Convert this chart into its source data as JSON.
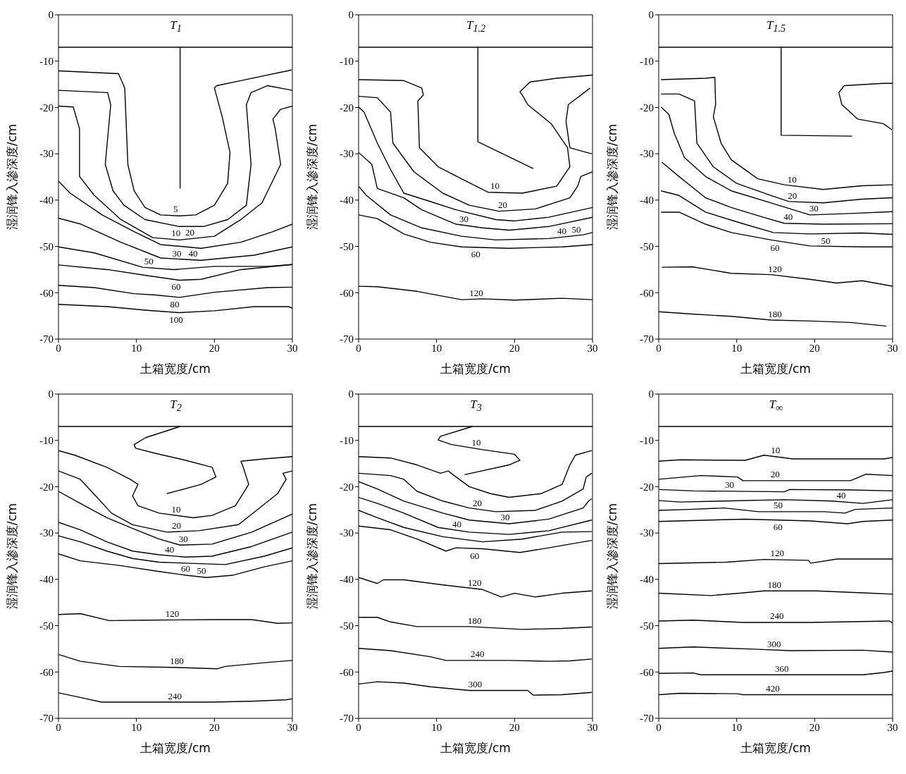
{
  "chart_data": [
    {
      "type": "line",
      "title": "T$_{1}$",
      "xlabel": "土箱宽度/cm",
      "ylabel": "湿润锋入渗深度/cm",
      "xlim": [
        0,
        30
      ],
      "xticks": [
        0,
        10,
        20,
        30
      ],
      "ylim": [
        -70,
        0
      ],
      "yticks": [
        -70,
        -60,
        -50,
        -40,
        -30,
        -20,
        -10,
        0
      ],
      "grid": false,
      "legend": false,
      "marker": "none",
      "line_style": "solid",
      "ref_lines": [
        {
          "axis": "y",
          "value": -7,
          "color": "#000000"
        }
      ],
      "series": [
        {
          "color": "#000000",
          "x": [
            15.6,
            15.6
          ],
          "values": [
            -7,
            -37.5
          ]
        },
        {
          "name": "5",
          "color": "#000000",
          "x": [
            0,
            7.7,
            8.5,
            8.9,
            9.7,
            11.1,
            13.1,
            15.5,
            17.6,
            20,
            21.7,
            22,
            21,
            20,
            20.3,
            23.4,
            29.9
          ],
          "values": [
            -12.1,
            -12.7,
            -15.8,
            -32.3,
            -38,
            -41.6,
            -43.2,
            -43.4,
            -43.2,
            -41.1,
            -36.4,
            -29.7,
            -22,
            -15.8,
            -15.3,
            -14.2,
            -11.9
          ]
        },
        {
          "name": "10",
          "color": "#000000",
          "x": [
            0,
            6.3,
            6.7,
            6,
            7,
            8.4,
            11.1,
            15.5,
            18.6,
            21.7,
            24.1,
            24.7,
            24.1,
            24.7,
            26.8,
            30
          ],
          "values": [
            -16.3,
            -16.8,
            -19.4,
            -32.3,
            -38,
            -41.1,
            -44.2,
            -45.7,
            -45.7,
            -44.2,
            -41.1,
            -32.3,
            -19.4,
            -16.8,
            -15.3,
            -16.3
          ]
        },
        {
          "name": "20",
          "color": "#000000",
          "x": [
            0,
            1.9,
            2.7,
            2.7,
            4.6,
            8,
            12.1,
            15.5,
            20,
            23.4,
            26.1,
            28.5,
            27.8,
            27.5,
            28.5,
            30
          ],
          "values": [
            -19.7,
            -19.9,
            -24.6,
            -34.9,
            -39,
            -44.2,
            -48.1,
            -48.6,
            -47.8,
            -44.2,
            -40.6,
            -32.3,
            -24.6,
            -22.5,
            -20.4,
            -19.7
          ]
        },
        {
          "name": "30",
          "color": "#000000",
          "x": [
            0,
            1.5,
            5.6,
            9.7,
            13.1,
            18.3,
            23.4,
            27.5,
            30
          ],
          "values": [
            -35.9,
            -38.5,
            -43.2,
            -46.8,
            -49.6,
            -50.4,
            -49.1,
            -46.8,
            -45.2
          ]
        },
        {
          "name": "40",
          "color": "#000000",
          "x": [
            0,
            2.9,
            8,
            13.1,
            18.3,
            25.1,
            30
          ],
          "values": [
            -43.9,
            -45.2,
            -49.1,
            -52.5,
            -53,
            -51.9,
            -50.1
          ]
        },
        {
          "name": "50",
          "color": "#000000",
          "x": [
            0,
            4.6,
            10.8,
            14.8,
            20,
            26.8,
            30
          ],
          "values": [
            -50.1,
            -51.4,
            -54.5,
            -55,
            -54.3,
            -54.3,
            -53.9
          ]
        },
        {
          "name": "60",
          "color": "#000000",
          "x": [
            0,
            6.3,
            11.4,
            15.5,
            18.3,
            23.4,
            30
          ],
          "values": [
            -54,
            -55,
            -56.3,
            -57.3,
            -57.1,
            -55,
            -53.9
          ]
        },
        {
          "name": "80",
          "color": "#000000",
          "x": [
            0,
            4.6,
            9.7,
            12.5,
            15.5,
            20,
            26.8,
            30
          ],
          "values": [
            -58.4,
            -58.9,
            -60.2,
            -60.5,
            -61,
            -59.9,
            -58.9,
            -58.8
          ]
        },
        {
          "name": "100",
          "color": "#000000",
          "x": [
            0,
            6.3,
            11.4,
            15.5,
            20,
            25.1,
            29.5,
            30
          ],
          "values": [
            -62.5,
            -63,
            -63.8,
            -64.3,
            -63.9,
            -63,
            -63,
            -63.3
          ]
        }
      ]
    },
    {
      "type": "line",
      "title": "T$_{1.2}$",
      "xlabel": "土箱宽度/cm",
      "ylabel": "湿润锋入渗深度/cm",
      "xlim": [
        0,
        30
      ],
      "xticks": [
        0,
        10,
        20,
        30
      ],
      "ylim": [
        -70,
        0
      ],
      "yticks": [
        -70,
        -60,
        -50,
        -40,
        -30,
        -20,
        -10,
        0
      ],
      "grid": false,
      "legend": false,
      "marker": "none",
      "line_style": "solid",
      "ref_lines": [
        {
          "axis": "y",
          "value": -7,
          "color": "#000000"
        }
      ],
      "series": [
        {
          "color": "#000000",
          "x": [
            15.3,
            15.3,
            22.4
          ],
          "values": [
            -7,
            -27.4,
            -33.2
          ]
        },
        {
          "name": "10",
          "color": "#000000",
          "x": [
            0,
            5.8,
            8.1,
            8.3,
            7.6,
            7.8,
            10.2,
            13.2,
            16.6,
            21,
            25.4,
            27.1,
            26.8,
            24.7,
            21.7,
            21.2,
            20.7,
            22,
            25.4,
            30
          ],
          "values": [
            -14,
            -14.2,
            -15.8,
            -17.3,
            -18.6,
            -28.7,
            -32.8,
            -35.4,
            -38.3,
            -38.5,
            -37,
            -32.8,
            -28.7,
            -23.5,
            -19.4,
            -17.9,
            -16.6,
            -14.5,
            -13.7,
            -13
          ]
        },
        {
          "name": "20",
          "color": "#000000",
          "x": [
            0,
            2.4,
            4.1,
            4.4,
            7.1,
            10.8,
            14.2,
            18,
            22.7,
            27.1,
            28.1,
            28.5,
            30,
            null,
            29.7,
            26.9,
            26.6,
            27.1,
            28.8,
            29.9
          ],
          "values": [
            -17.6,
            -17.9,
            -21,
            -27.7,
            -33.9,
            -38.5,
            -41.1,
            -42.4,
            -41.9,
            -39.5,
            -37,
            -34.9,
            -33.9,
            null,
            -15.8,
            -19.4,
            -23,
            -28.7,
            -29.5,
            -30
          ]
        },
        {
          "name": "30",
          "color": "#000000",
          "x": [
            0,
            0.7,
            2.4,
            4.1,
            5.8,
            8.8,
            12.5,
            17.6,
            20,
            24.4,
            30
          ],
          "values": [
            -19.9,
            -21,
            -27.7,
            -33.4,
            -38.5,
            -40.1,
            -42.1,
            -44.2,
            -44.5,
            -43.7,
            -41.6
          ]
        },
        {
          "name": "40",
          "color": "#000000",
          "x": [
            0,
            1.7,
            2.4,
            5.8,
            8.1,
            12.5,
            15.9,
            19.3,
            24.4,
            30
          ],
          "values": [
            -29.7,
            -32.3,
            -37.5,
            -39.5,
            -42.1,
            -45.2,
            -46,
            -46.5,
            -45.7,
            -43.7
          ]
        },
        {
          "name": "50",
          "color": "#000000",
          "x": [
            0,
            1,
            4.1,
            8.1,
            13.2,
            17.6,
            24.4,
            28.8,
            30
          ],
          "values": [
            -37,
            -39,
            -43.2,
            -46,
            -47.8,
            -48.6,
            -48.3,
            -47.5,
            -47
          ]
        },
        {
          "name": "60",
          "color": "#000000",
          "x": [
            0,
            2.4,
            5.8,
            9.2,
            13.2,
            19.3,
            26.1,
            30
          ],
          "values": [
            -43.2,
            -44,
            -47.3,
            -49.1,
            -50.1,
            -50.4,
            -50.1,
            -49.6
          ]
        },
        {
          "name": "120",
          "color": "#000000",
          "x": [
            0,
            2.4,
            7.5,
            13.2,
            15.9,
            20,
            26.1,
            30
          ],
          "values": [
            -58.6,
            -58.7,
            -59.7,
            -61.5,
            -61.3,
            -61.6,
            -61.2,
            -61.5
          ]
        }
      ]
    },
    {
      "type": "line",
      "title": "T$_{1.5}$",
      "xlabel": "土箱宽度/cm",
      "ylabel": "湿润锋入渗深度/cm",
      "xlim": [
        0,
        30
      ],
      "xticks": [
        0,
        10,
        20,
        30
      ],
      "ylim": [
        -70,
        0
      ],
      "yticks": [
        -70,
        -60,
        -50,
        -40,
        -30,
        -20,
        -10,
        0
      ],
      "grid": false,
      "legend": false,
      "marker": "none",
      "line_style": "solid",
      "ref_lines": [
        {
          "axis": "y",
          "value": -7,
          "color": "#000000"
        }
      ],
      "series": [
        {
          "color": "#000000",
          "x": [
            15.7,
            15.7,
            24.8
          ],
          "values": [
            -7,
            -26,
            -26.2
          ]
        },
        {
          "name": "10",
          "color": "#000000",
          "x": [
            0.3,
            6,
            7.2,
            7.3,
            7,
            8,
            9.3,
            12.7,
            16.1,
            21.1,
            26.1,
            30,
            null,
            30,
            28.8,
            23.8,
            23.1,
            23.5,
            25.5,
            28.8,
            29.9
          ],
          "values": [
            -14,
            -13.7,
            -13.5,
            -19.4,
            -22,
            -27.7,
            -31.3,
            -35.4,
            -36.7,
            -37.7,
            -36.9,
            -36.7,
            null,
            -14.8,
            -14.8,
            -15.3,
            -16.8,
            -19.4,
            -22.5,
            -23.5,
            -24.8
          ]
        },
        {
          "name": "20",
          "color": "#000000",
          "x": [
            0.3,
            2.6,
            4.6,
            4.9,
            7,
            10,
            14.4,
            16.7,
            21.1,
            26.1,
            30
          ],
          "values": [
            -17.1,
            -17.1,
            -18.6,
            -27.7,
            -32.8,
            -36.4,
            -39,
            -40.3,
            -40.6,
            -39.8,
            -39.5
          ]
        },
        {
          "name": "30",
          "color": "#000000",
          "x": [
            0.3,
            1.3,
            2,
            3.3,
            6,
            9.3,
            14.4,
            19.4,
            24.5,
            30
          ],
          "values": [
            -19.9,
            -21.5,
            -25.6,
            -30.8,
            -34.9,
            -38,
            -40.6,
            -43.2,
            -42.9,
            -42.5
          ]
        },
        {
          "name": "40",
          "color": "#000000",
          "x": [
            0.4,
            2.6,
            6,
            9.3,
            13.4,
            16.1,
            21.1,
            30
          ],
          "values": [
            -31.8,
            -34.9,
            -39.5,
            -41.6,
            -43.7,
            -45,
            -45.2,
            -45.1
          ]
        },
        {
          "name": "50",
          "color": "#000000",
          "x": [
            0.3,
            2.6,
            6,
            11,
            14.7,
            19.4,
            26.1,
            30
          ],
          "values": [
            -38,
            -39,
            -42.6,
            -45.2,
            -47,
            -47.3,
            -47.1,
            -47.4
          ]
        },
        {
          "name": "60",
          "color": "#000000",
          "x": [
            0.3,
            2.6,
            6,
            9.3,
            14.4,
            19.4,
            26.1,
            30
          ],
          "values": [
            -42.6,
            -42.6,
            -45.2,
            -47,
            -48.6,
            -49.9,
            -50.1,
            -50.1
          ]
        },
        {
          "name": "120",
          "color": "#000000",
          "x": [
            0.4,
            4.3,
            9.3,
            14.4,
            19.4,
            22.8,
            26.1,
            30
          ],
          "values": [
            -54.5,
            -54.4,
            -55.8,
            -56.1,
            -57.1,
            -57.9,
            -57.4,
            -58.6
          ]
        },
        {
          "name": "180",
          "color": "#000000",
          "x": [
            0,
            4.3,
            9.3,
            14.4,
            19.4,
            24.5,
            29.2
          ],
          "values": [
            -64.1,
            -64.6,
            -65.1,
            -65.9,
            -66.1,
            -66.4,
            -67.2
          ]
        }
      ]
    },
    {
      "type": "line",
      "title": "T$_{2}$",
      "xlabel": "土箱宽度/cm",
      "ylabel": "湿润锋入渗深度/cm",
      "xlim": [
        0,
        30
      ],
      "xticks": [
        0,
        10,
        20,
        30
      ],
      "ylim": [
        -70,
        0
      ],
      "yticks": [
        -70,
        -60,
        -50,
        -40,
        -30,
        -20,
        -10,
        0
      ],
      "grid": false,
      "legend": false,
      "marker": "none",
      "line_style": "solid",
      "ref_lines": [
        {
          "axis": "y",
          "value": -7,
          "color": "#000000"
        }
      ],
      "series": [
        {
          "name": "10",
          "color": "#000000",
          "x": [
            0,
            2.1,
            6.2,
            9.2,
            10.2,
            9.5,
            10.2,
            12.9,
            17.3,
            19.7,
            22.7,
            24.4,
            23.7,
            23.4,
            26.4,
            30,
            null,
            15.6,
            11.2,
            9.7,
            9.9,
            12.2,
            16.3,
            19.7,
            20.2,
            18.3,
            13.9
          ],
          "values": [
            -12.2,
            -13.2,
            -15.8,
            -18.4,
            -19.5,
            -22,
            -24.1,
            -25.7,
            -26.7,
            -26.2,
            -24.1,
            -19.5,
            -15.8,
            -14.5,
            -14,
            -13.5,
            null,
            -7,
            -9.4,
            -10.9,
            -11.7,
            -12.7,
            -14.3,
            -15.8,
            -17.9,
            -19.5,
            -21.5
          ]
        },
        {
          "name": "20",
          "color": "#000000",
          "x": [
            0,
            2.8,
            4.5,
            6.8,
            9.5,
            13.9,
            18,
            23.1,
            28.1,
            29.2,
            28.8,
            30
          ],
          "values": [
            -16.6,
            -18.4,
            -21.5,
            -25.7,
            -28.2,
            -29.8,
            -29.5,
            -28.2,
            -21.5,
            -18.4,
            -17.1,
            -16.6
          ]
        },
        {
          "name": "30",
          "color": "#000000",
          "x": [
            0,
            2.8,
            6.2,
            9.5,
            12.9,
            15.6,
            19.7,
            24.8,
            30
          ],
          "values": [
            -21,
            -23.6,
            -26.7,
            -29,
            -31.3,
            -32.6,
            -32.4,
            -29.8,
            -25.9
          ]
        },
        {
          "name": "40",
          "color": "#000000",
          "x": [
            0,
            2.8,
            6.2,
            9.5,
            12.9,
            16.3,
            19.7,
            24.8,
            30
          ],
          "values": [
            -27.7,
            -29.3,
            -31.9,
            -33.9,
            -34.7,
            -35.2,
            -35,
            -32.9,
            -29.8
          ]
        },
        {
          "name": "50",
          "color": "#000000",
          "x": [
            0,
            2.8,
            6.2,
            9.5,
            12.9,
            16.3,
            21.4,
            26.4,
            30
          ],
          "values": [
            -30.6,
            -31.9,
            -33.9,
            -35.5,
            -36.3,
            -36.5,
            -36.8,
            -35,
            -33.2
          ]
        },
        {
          "name": "60",
          "color": "#000000",
          "x": [
            0,
            2.8,
            7.8,
            12.9,
            16.3,
            19,
            22.4,
            26.4,
            30
          ],
          "values": [
            -34.5,
            -36,
            -37,
            -38.3,
            -39.1,
            -39.6,
            -39.1,
            -37.3,
            -36
          ]
        },
        {
          "name": "120",
          "color": "#000000",
          "x": [
            0,
            2.8,
            6.5,
            11.2,
            19.7,
            24.8,
            28.1,
            30
          ],
          "values": [
            -47.6,
            -47.4,
            -48.9,
            -48.8,
            -48.7,
            -48.7,
            -49.5,
            -49.4
          ]
        },
        {
          "name": "180",
          "color": "#000000",
          "x": [
            0,
            2.8,
            7.8,
            14.6,
            20.4,
            21.4,
            26.4,
            30
          ],
          "values": [
            -56.2,
            -57.7,
            -58.8,
            -59,
            -59.3,
            -58.8,
            -58,
            -57.5
          ]
        },
        {
          "name": "240",
          "color": "#000000",
          "x": [
            0,
            2.8,
            5.5,
            12.9,
            19.7,
            24.8,
            29.2,
            30
          ],
          "values": [
            -64.5,
            -65.5,
            -66.5,
            -66.5,
            -66.5,
            -66.3,
            -66,
            -65.8
          ]
        }
      ]
    },
    {
      "type": "line",
      "title": "T$_{3}$",
      "xlabel": "土箱宽度/cm",
      "ylabel": "湿润锋入渗深度/cm",
      "xlim": [
        0,
        30
      ],
      "xticks": [
        0,
        10,
        20,
        30
      ],
      "ylim": [
        -70,
        0
      ],
      "yticks": [
        -70,
        -60,
        -50,
        -40,
        -30,
        -20,
        -10,
        0
      ],
      "grid": false,
      "legend": false,
      "marker": "none",
      "line_style": "solid",
      "ref_lines": [
        {
          "axis": "y",
          "value": -7,
          "color": "#000000"
        }
      ],
      "series": [
        {
          "name": "10",
          "color": "#000000",
          "x": [
            0,
            4.1,
            7.5,
            10.5,
            11.5,
            12.5,
            14.2,
            16.9,
            19.3,
            23.4,
            26.1,
            27.1,
            27.8,
            29.9,
            null,
            14.6,
            10.5,
            10.2,
            11.9,
            15.9,
            20,
            20.7,
            19.3,
            13.6
          ],
          "values": [
            -13.5,
            -13.8,
            -15.3,
            -17.1,
            -16.6,
            -17.9,
            -20,
            -21.5,
            -22.3,
            -21.5,
            -19.5,
            -15.3,
            -13.2,
            -12.2,
            null,
            -7,
            -9.1,
            -9.9,
            -10.9,
            -12,
            -13,
            -14.3,
            -15.3,
            -17.4
          ]
        },
        {
          "name": "20",
          "color": "#000000",
          "x": [
            0,
            4.1,
            5.8,
            7.5,
            10.8,
            14.2,
            17.6,
            22.7,
            26.1,
            28.8,
            29.2,
            29.9
          ],
          "values": [
            -17.1,
            -17.6,
            -18.4,
            -21,
            -23.1,
            -24.6,
            -25.4,
            -25.1,
            -23.1,
            -20.5,
            -17.9,
            -17.1
          ]
        },
        {
          "name": "30",
          "color": "#000000",
          "x": [
            0,
            2.4,
            5.8,
            10.8,
            14.2,
            19.3,
            24.4,
            28.8,
            29.5,
            29.9
          ],
          "values": [
            -18.9,
            -20.5,
            -23.1,
            -25.7,
            -27.2,
            -28,
            -27,
            -24.6,
            -23.1,
            -22.6
          ]
        },
        {
          "name": "40",
          "color": "#000000",
          "x": [
            0,
            2.4,
            5.8,
            10.2,
            14.2,
            19.3,
            24.4,
            29.9
          ],
          "values": [
            -22.3,
            -23.6,
            -25.7,
            -28.8,
            -29.8,
            -30.3,
            -29.5,
            -27.2
          ]
        },
        {
          "name": "50",
          "color": "#000000",
          "x": [
            0,
            2.4,
            5.8,
            10.8,
            15.9,
            21,
            26.1,
            29.9
          ],
          "values": [
            -25.1,
            -26.7,
            -28.8,
            -30.8,
            -31.9,
            -31.3,
            -29.8,
            -29.7
          ]
        },
        {
          "name": "60",
          "color": "#000000",
          "x": [
            0,
            4.1,
            7.5,
            11.2,
            12.5,
            15.9,
            20.7,
            24.4,
            27.1,
            29.9
          ],
          "values": [
            -28.5,
            -29.3,
            -31.3,
            -33.9,
            -33.2,
            -33.4,
            -34.2,
            -33.2,
            -32.4,
            -31.6
          ]
        },
        {
          "name": "120",
          "color": "#000000",
          "x": [
            0,
            2.4,
            3.2,
            5.8,
            10.8,
            15.9,
            18.3,
            20,
            22.7,
            26.1,
            29.9
          ],
          "values": [
            -39.6,
            -40.9,
            -40.1,
            -40.1,
            -41.2,
            -42.2,
            -43.8,
            -43,
            -43.8,
            -43,
            -42.5
          ]
        },
        {
          "name": "180",
          "color": "#000000",
          "x": [
            0,
            2.4,
            4.1,
            7.5,
            14.2,
            21,
            26.1,
            29.9
          ],
          "values": [
            -48.2,
            -48.2,
            -49.2,
            -50.2,
            -50.2,
            -50.8,
            -50.6,
            -50.3
          ]
        },
        {
          "name": "240",
          "color": "#000000",
          "x": [
            0,
            4.1,
            9.2,
            11.2,
            19.3,
            24.4,
            27.1,
            29.9
          ],
          "values": [
            -54.9,
            -55.4,
            -56.7,
            -57.5,
            -57.5,
            -57.7,
            -57.6,
            -57.2
          ]
        },
        {
          "name": "300",
          "color": "#000000",
          "x": [
            0,
            2.4,
            5.8,
            9.2,
            14.2,
            21.7,
            22.4,
            26.1,
            29.9
          ],
          "values": [
            -62.6,
            -62.1,
            -62.4,
            -63.2,
            -64,
            -64,
            -65,
            -64.9,
            -64.4
          ]
        }
      ]
    },
    {
      "type": "line",
      "title": "T$_{∞}$",
      "xlabel": "土箱宽度/cm",
      "ylabel": "湿润锋入渗深度/cm",
      "xlim": [
        0,
        30
      ],
      "xticks": [
        0,
        10,
        20,
        30
      ],
      "ylim": [
        -70,
        0
      ],
      "yticks": [
        -70,
        -60,
        -50,
        -40,
        -30,
        -20,
        -10,
        0
      ],
      "grid": false,
      "legend": false,
      "marker": "none",
      "line_style": "solid",
      "ref_lines": [
        {
          "axis": "y",
          "value": -7,
          "color": "#000000"
        }
      ],
      "series": [
        {
          "name": "10",
          "color": "#000000",
          "x": [
            0,
            2.7,
            11.1,
            13.5,
            17.2,
            28.9,
            30
          ],
          "values": [
            -14.5,
            -14.2,
            -14.3,
            -13.2,
            -14,
            -14,
            -13.7
          ]
        },
        {
          "name": "20",
          "color": "#000000",
          "x": [
            0,
            5.4,
            10.1,
            10.8,
            24.6,
            26.6,
            30
          ],
          "values": [
            -18.4,
            -17.6,
            -17.9,
            -18.7,
            -18.7,
            -17.3,
            -17.6
          ]
        },
        {
          "name": "30",
          "color": "#000000",
          "x": [
            0,
            4.4,
            16.1,
            16.8,
            24.6,
            30
          ],
          "values": [
            -20.6,
            -20.9,
            -21.1,
            -20.6,
            -20.7,
            -20.9
          ]
        },
        {
          "name": "40",
          "color": "#000000",
          "x": [
            0,
            2.7,
            8.4,
            16.1,
            22.2,
            26.2,
            30
          ],
          "values": [
            -23,
            -23.3,
            -23.1,
            -22.8,
            -23.1,
            -23.6,
            -22.8
          ]
        },
        {
          "name": "50",
          "color": "#000000",
          "x": [
            0,
            4,
            8.4,
            12.8,
            21.2,
            23.9,
            25.2,
            30
          ],
          "values": [
            -25.1,
            -24.9,
            -24.6,
            -25.4,
            -25.4,
            -25.7,
            -24.9,
            -24.6
          ]
        },
        {
          "name": "60",
          "color": "#000000",
          "x": [
            0,
            11.1,
            19.5,
            24.2,
            26.2,
            30
          ],
          "values": [
            -27.5,
            -27,
            -27.4,
            -28,
            -27.5,
            -27.2
          ]
        },
        {
          "name": "120",
          "color": "#000000",
          "x": [
            0,
            8.7,
            13.5,
            19.2,
            19.5,
            22.9,
            30
          ],
          "values": [
            -36.6,
            -36.3,
            -35.7,
            -35.9,
            -36.5,
            -35.6,
            -35.6
          ]
        },
        {
          "name": "180",
          "color": "#000000",
          "x": [
            0,
            6.7,
            10.4,
            13.5,
            20.2,
            27.2,
            30
          ],
          "values": [
            -43,
            -43.5,
            -43,
            -42.5,
            -42.5,
            -43,
            -43.2
          ]
        },
        {
          "name": "240",
          "color": "#000000",
          "x": [
            0,
            4.4,
            10.8,
            19.5,
            29.6,
            30
          ],
          "values": [
            -49,
            -48.8,
            -49.3,
            -49.3,
            -49,
            -49.4
          ]
        },
        {
          "name": "300",
          "color": "#000000",
          "x": [
            0,
            4.4,
            12.8,
            16.8,
            26.2,
            30
          ],
          "values": [
            -54.9,
            -54.6,
            -55.1,
            -55.4,
            -55.3,
            -55.7
          ]
        },
        {
          "name": "360",
          "color": "#000000",
          "x": [
            0,
            4.4,
            5.4,
            26.2,
            28.9,
            30
          ],
          "values": [
            -60.3,
            -60.2,
            -60.6,
            -60.6,
            -60.1,
            -59.8
          ]
        },
        {
          "name": "420",
          "color": "#000000",
          "x": [
            0,
            2.7,
            10.1,
            10.8,
            30
          ],
          "values": [
            -64.9,
            -64.6,
            -64.7,
            -64.9,
            -64.9
          ]
        }
      ]
    }
  ]
}
